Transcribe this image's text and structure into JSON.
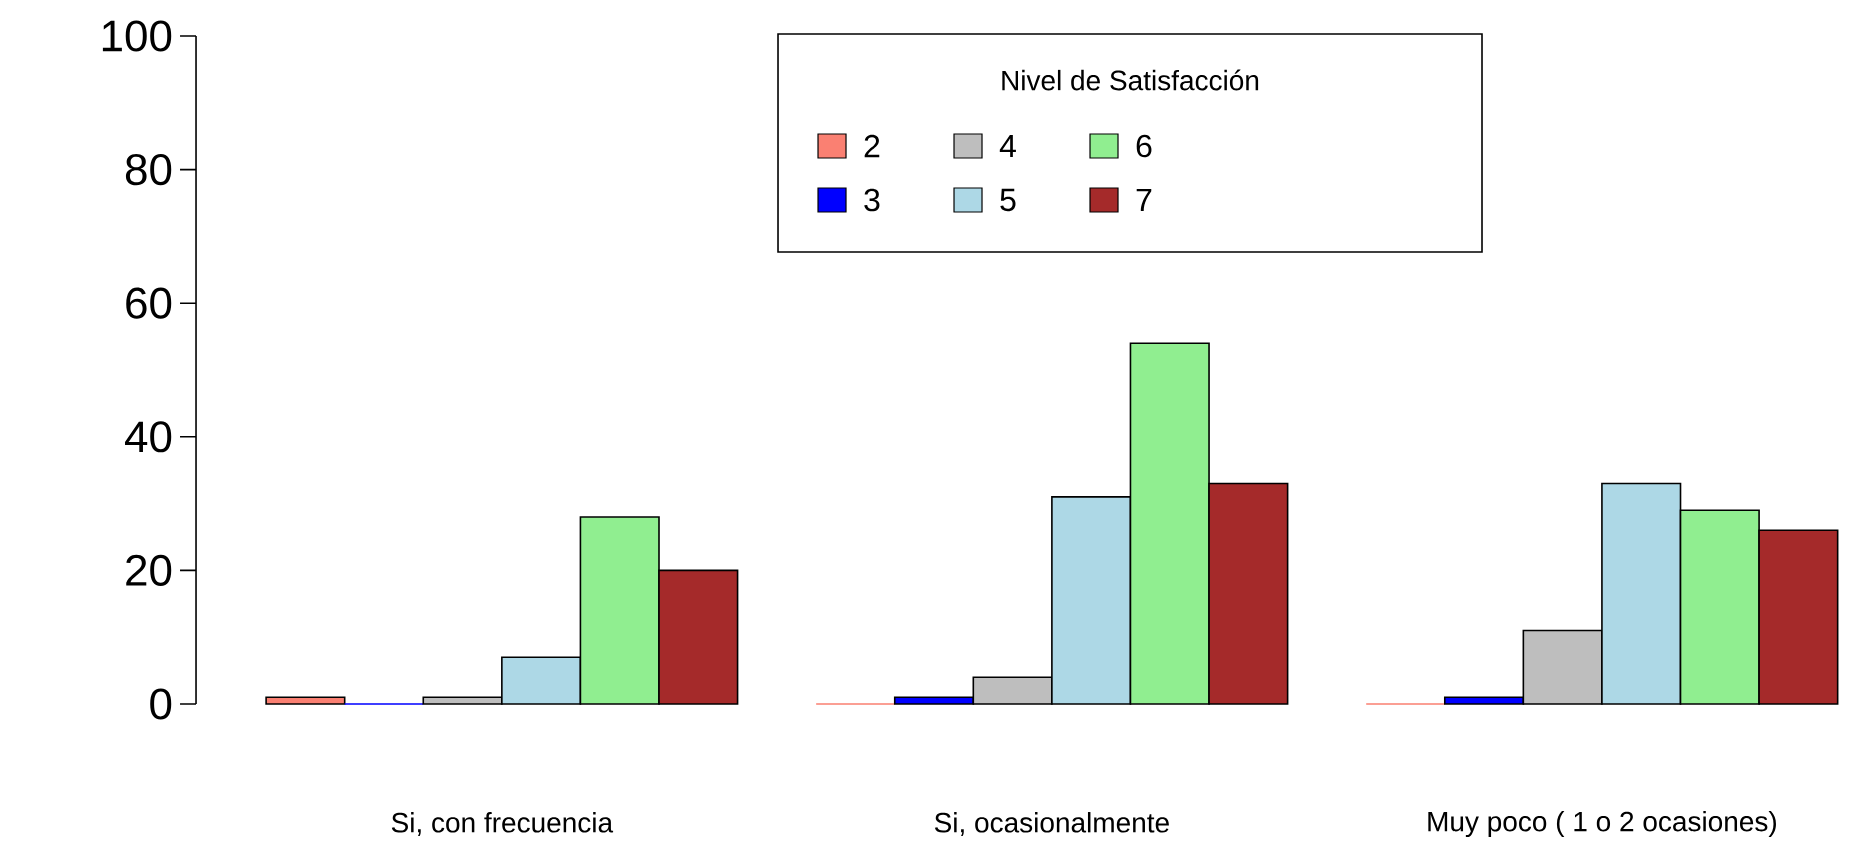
{
  "chart_data": {
    "type": "bar",
    "categories": [
      "Si, con frecuencia",
      "Si, ocasionalmente",
      "Muy poco ( 1 o 2 ocasiones)"
    ],
    "legend_title": "Nivel de Satisfacción",
    "legend": "top",
    "ylim": [
      0,
      100
    ],
    "yticks": [
      0,
      20,
      40,
      60,
      80,
      100
    ],
    "series": [
      {
        "name": "2",
        "color": "#fa8072",
        "values": [
          1,
          0,
          0
        ]
      },
      {
        "name": "3",
        "color": "#0000ff",
        "values": [
          0,
          1,
          1
        ]
      },
      {
        "name": "4",
        "color": "#bebebe",
        "values": [
          1,
          4,
          11
        ]
      },
      {
        "name": "5",
        "color": "#add8e6",
        "values": [
          7,
          31,
          33
        ]
      },
      {
        "name": "6",
        "color": "#90ee90",
        "values": [
          28,
          54,
          29
        ]
      },
      {
        "name": "7",
        "color": "#a52a2a",
        "values": [
          20,
          33,
          26
        ]
      }
    ]
  }
}
